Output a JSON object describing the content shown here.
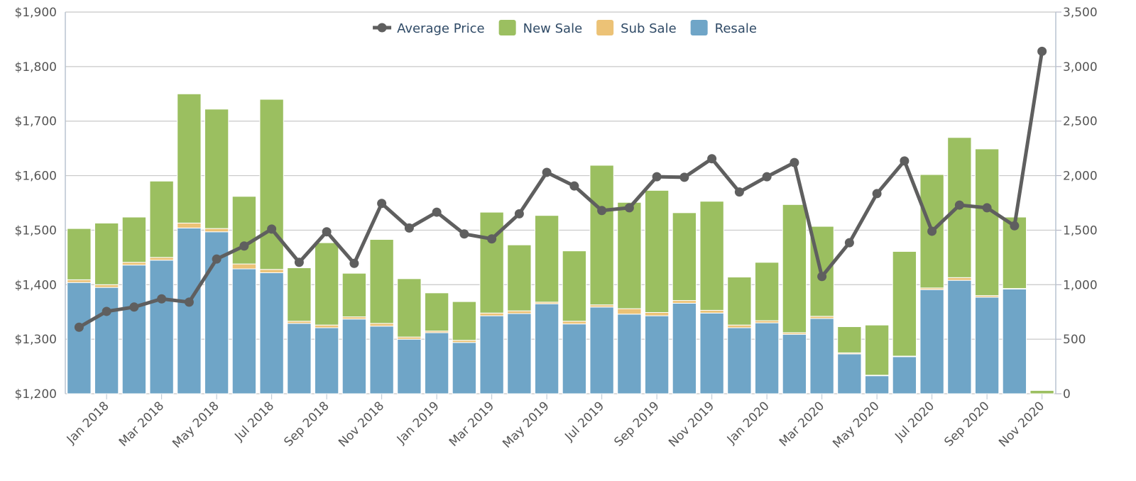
{
  "chart_data": {
    "type": "combo",
    "categories": [
      null,
      "Jan 2018",
      null,
      "Mar 2018",
      null,
      "May 2018",
      null,
      "Jul 2018",
      null,
      "Sep 2018",
      null,
      "Nov 2018",
      null,
      "Jan 2019",
      null,
      "Mar 2019",
      null,
      "May 2019",
      null,
      "Jul 2019",
      null,
      "Sep 2019",
      null,
      "Nov 2019",
      null,
      "Jan 2020",
      null,
      "Mar 2020",
      null,
      "May 2020",
      null,
      "Jul 2020",
      null,
      "Sep 2020",
      null,
      "Nov 2020"
    ],
    "series": [
      {
        "name": "Average Price",
        "type": "line",
        "axis": "y",
        "color": "#5f5f5f",
        "values": [
          1322,
          1351,
          1359,
          1374,
          1368,
          1447,
          1471,
          1502,
          1441,
          1497,
          1439,
          1549,
          1504,
          1533,
          1493,
          1484,
          1530,
          1606,
          1581,
          1536,
          1541,
          1598,
          1597,
          1631,
          1570,
          1598,
          1624,
          1415,
          1477,
          1567,
          1627,
          1498,
          1546,
          1541,
          1508,
          1828
        ]
      },
      {
        "name": "New Sale",
        "type": "bar",
        "axis": "y2",
        "color": "#9bbf60",
        "values": [
          470,
          565,
          415,
          700,
          1185,
          1095,
          620,
          1560,
          490,
          755,
          400,
          770,
          535,
          350,
          355,
          925,
          605,
          795,
          645,
          1280,
          975,
          1120,
          805,
          1000,
          440,
          535,
          1175,
          825,
          240,
          460,
          960,
          1040,
          1285,
          1345,
          655,
          30
        ]
      },
      {
        "name": "Sub Sale",
        "type": "bar",
        "axis": "y2",
        "color": "#ecc276",
        "values": [
          25,
          25,
          25,
          25,
          45,
          30,
          45,
          30,
          20,
          25,
          20,
          25,
          20,
          15,
          20,
          25,
          25,
          15,
          25,
          20,
          50,
          30,
          25,
          25,
          25,
          20,
          15,
          20,
          10,
          5,
          5,
          15,
          25,
          15,
          5,
          0
        ]
      },
      {
        "name": "Resale",
        "type": "bar",
        "axis": "y2",
        "color": "#6fa5c7",
        "values": [
          1020,
          975,
          1180,
          1225,
          1520,
          1485,
          1145,
          1110,
          645,
          605,
          685,
          620,
          500,
          560,
          470,
          715,
          735,
          825,
          640,
          795,
          730,
          715,
          830,
          740,
          605,
          650,
          545,
          690,
          365,
          165,
          340,
          955,
          1040,
          885,
          960,
          0
        ]
      }
    ],
    "ylim": [
      1200,
      1900
    ],
    "yticks": [
      {
        "value": 1200,
        "label": "$1,200"
      },
      {
        "value": 1300,
        "label": "$1,300"
      },
      {
        "value": 1400,
        "label": "$1,400"
      },
      {
        "value": 1500,
        "label": "$1,500"
      },
      {
        "value": 1600,
        "label": "$1,600"
      },
      {
        "value": 1700,
        "label": "$1,700"
      },
      {
        "value": 1800,
        "label": "$1,800"
      },
      {
        "value": 1900,
        "label": "$1,900"
      }
    ],
    "y2lim": [
      0,
      3500
    ],
    "y2ticks": [
      0,
      500,
      {
        "value": 1000,
        "label": "1,000"
      },
      {
        "value": 1500,
        "label": "1,500"
      },
      {
        "value": 2000,
        "label": "2,000"
      },
      {
        "value": 2500,
        "label": "2,500"
      },
      {
        "value": 3000,
        "label": "3,000"
      },
      {
        "value": 3500,
        "label": "3,500"
      }
    ],
    "grid": true,
    "legend": "top"
  }
}
